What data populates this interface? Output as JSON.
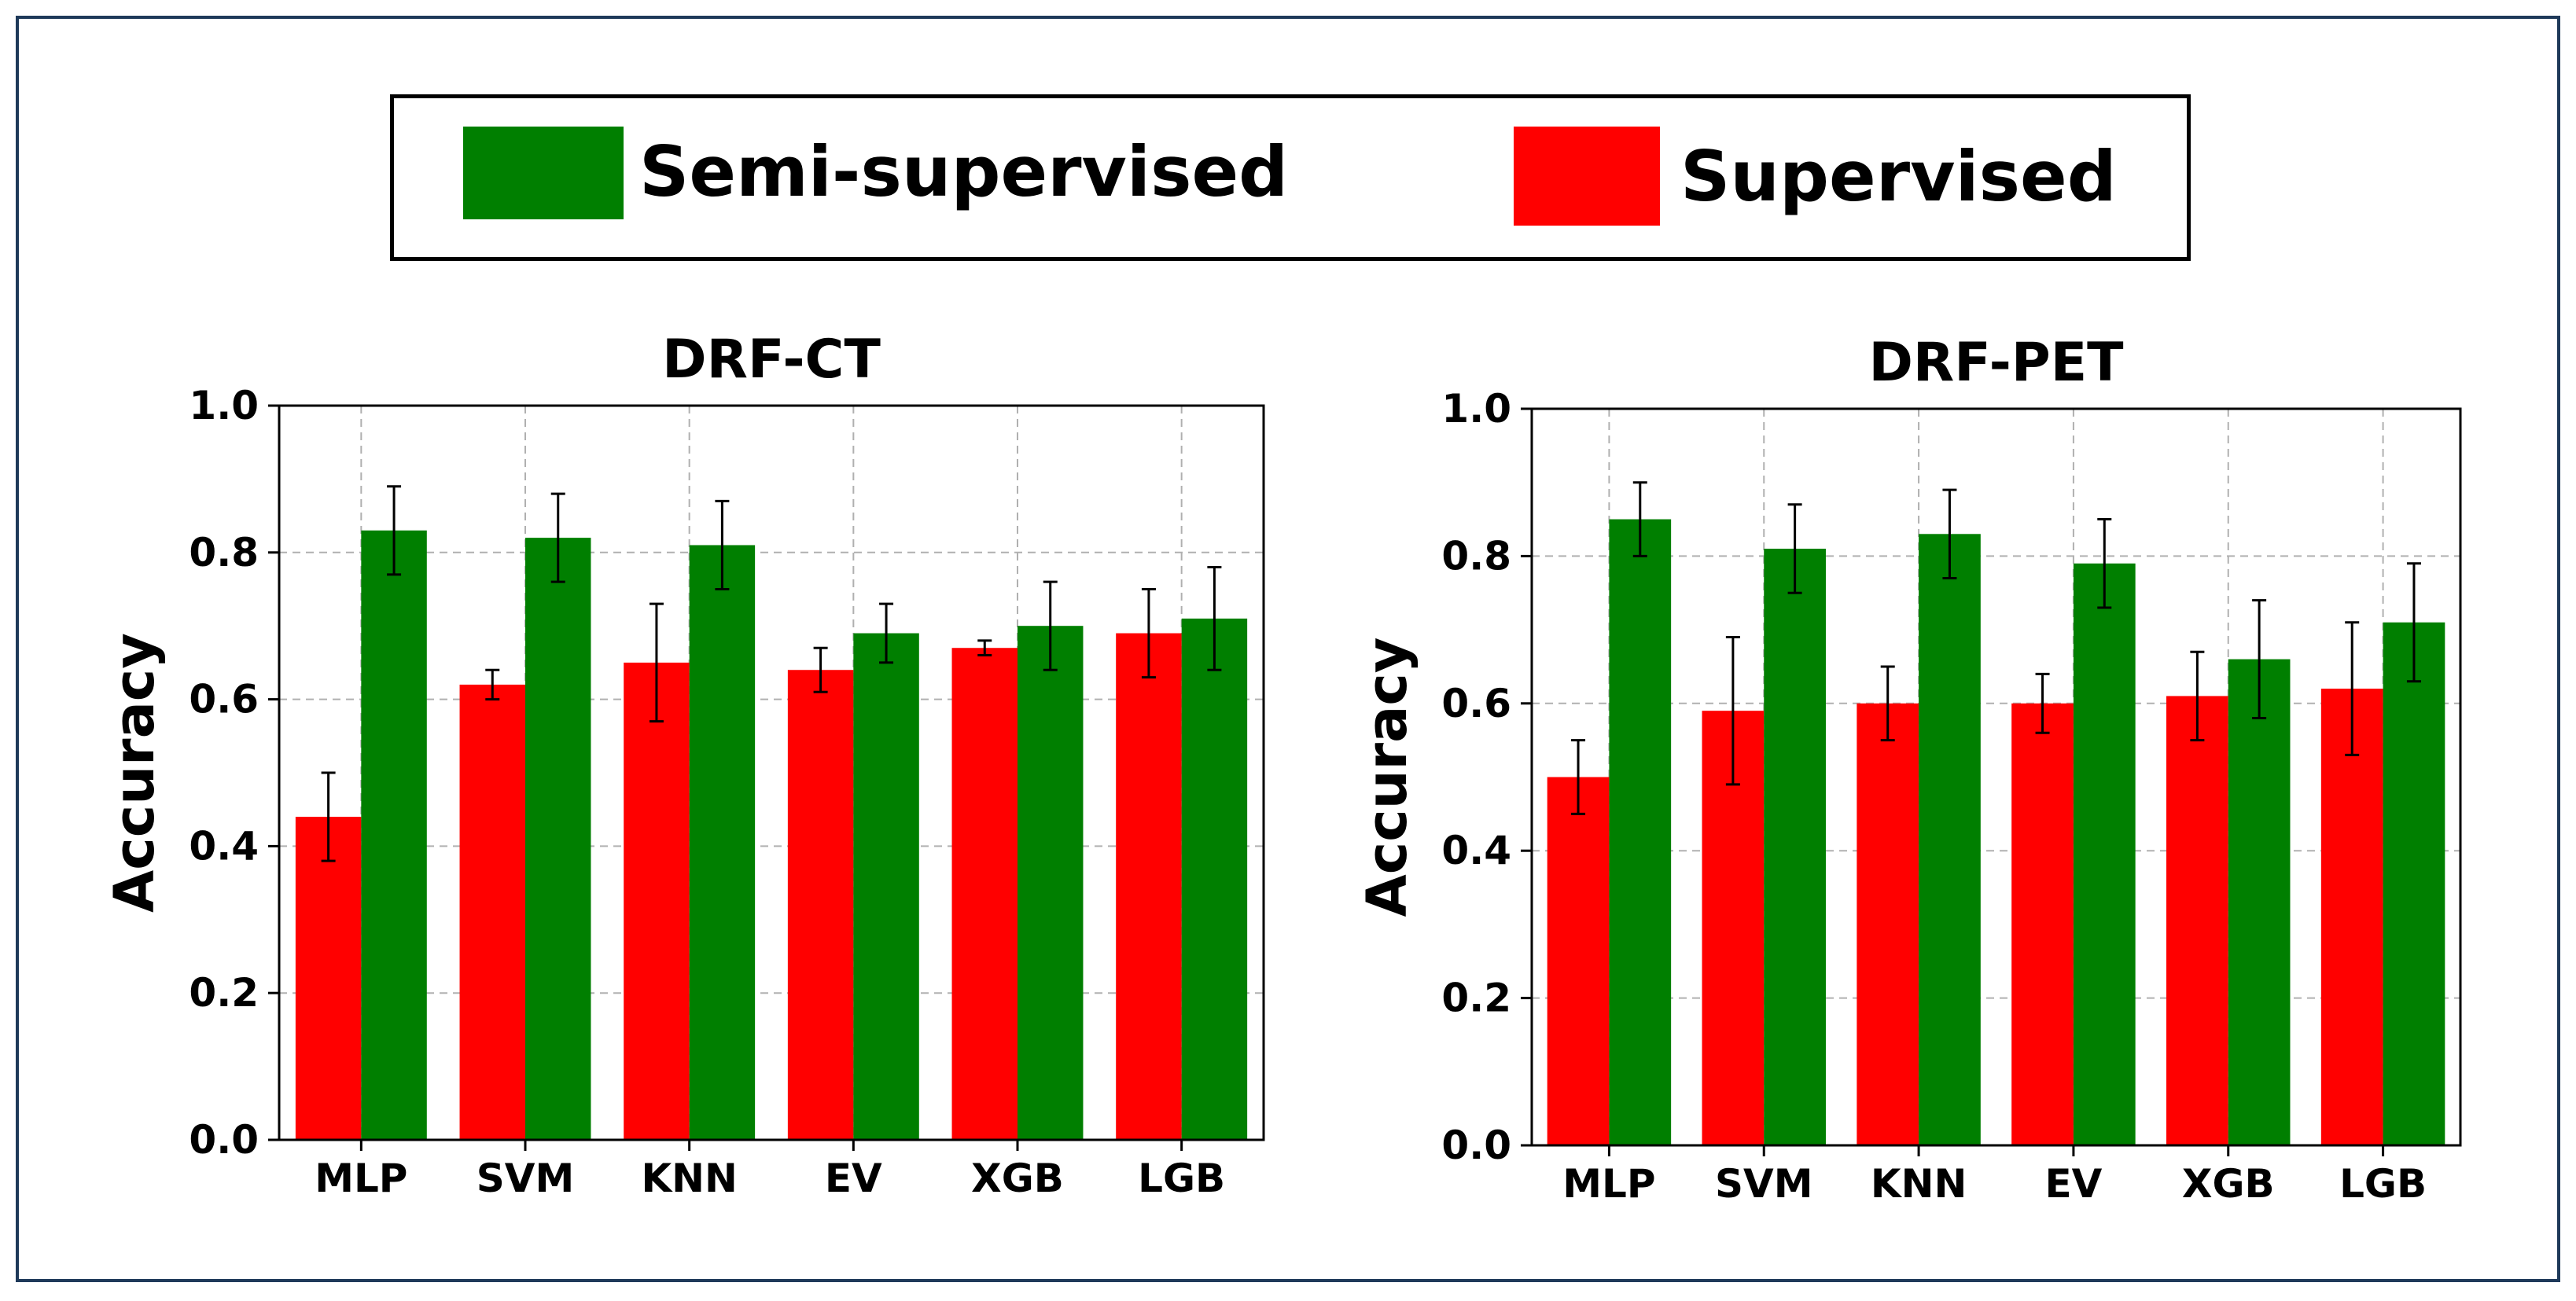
{
  "legend": {
    "items": [
      {
        "label": "Semi-supervised",
        "color": "#007f00"
      },
      {
        "label": "Supervised",
        "color": "#ff0000"
      }
    ]
  },
  "colors": {
    "supervised": "#ff0000",
    "semi": "#007f00",
    "frame": "#1f3a5a",
    "grid": "#b0b0b0"
  },
  "chart_data": [
    {
      "type": "bar",
      "title": "DRF-CT",
      "xlabel": "",
      "ylabel": "Accuracy",
      "ylim": [
        0,
        1.0
      ],
      "yticks": [
        "0.0",
        "0.2",
        "0.4",
        "0.6",
        "0.8",
        "1.0"
      ],
      "grid": true,
      "categories": [
        "MLP",
        "SVM",
        "KNN",
        "EV",
        "XGB",
        "LGB"
      ],
      "series": [
        {
          "name": "Supervised",
          "values": [
            0.44,
            0.62,
            0.65,
            0.64,
            0.67,
            0.69
          ],
          "errors": [
            0.06,
            0.02,
            0.08,
            0.03,
            0.01,
            0.06
          ]
        },
        {
          "name": "Semi-supervised",
          "values": [
            0.83,
            0.82,
            0.81,
            0.69,
            0.7,
            0.71
          ],
          "errors": [
            0.06,
            0.06,
            0.06,
            0.04,
            0.06,
            0.07
          ]
        }
      ]
    },
    {
      "type": "bar",
      "title": "DRF-PET",
      "xlabel": "",
      "ylabel": "Accuracy",
      "ylim": [
        0,
        1.0
      ],
      "yticks": [
        "0.0",
        "0.2",
        "0.4",
        "0.6",
        "0.8",
        "1.0"
      ],
      "grid": true,
      "categories": [
        "MLP",
        "SVM",
        "KNN",
        "EV",
        "XGB",
        "LGB"
      ],
      "series": [
        {
          "name": "Supervised",
          "values": [
            0.5,
            0.59,
            0.6,
            0.6,
            0.61,
            0.62
          ],
          "errors": [
            0.05,
            0.1,
            0.05,
            0.04,
            0.06,
            0.09
          ]
        },
        {
          "name": "Semi-supervised",
          "values": [
            0.85,
            0.81,
            0.83,
            0.79,
            0.66,
            0.71
          ],
          "errors": [
            0.05,
            0.06,
            0.06,
            0.06,
            0.08,
            0.08
          ]
        }
      ]
    }
  ]
}
